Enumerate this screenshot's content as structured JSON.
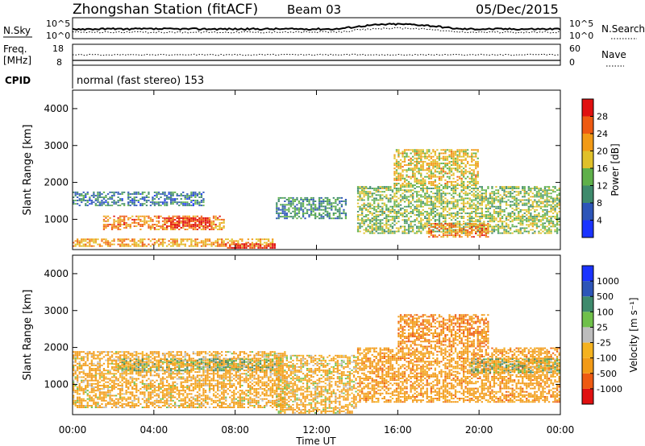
{
  "header": {
    "station": "Zhongshan Station (fitACF)",
    "beam": "Beam 03",
    "date": "05/Dec/2015"
  },
  "panels": {
    "nsky": {
      "left_label": "N.Sky",
      "left_ticks": [
        "10^5",
        "10^0"
      ],
      "right_ticks": [
        "10^5",
        "10^0"
      ],
      "right_label": "N.Search"
    },
    "freq": {
      "left_label_top": "Freq.",
      "left_label_unit": "[MHz]",
      "left_ticks": [
        "18",
        "8"
      ],
      "right_ticks": [
        "60",
        "0"
      ],
      "right_label": "Nave"
    },
    "cpid": {
      "label": "CPID",
      "text": "normal (fast stereo)  153"
    }
  },
  "axes": {
    "ylabel": "Slant Range [km]",
    "xlabel": "Time UT",
    "y_ticks": [
      "4000",
      "3000",
      "2000",
      "1000"
    ],
    "x_ticks": [
      "00:00",
      "04:00",
      "08:00",
      "12:00",
      "16:00",
      "20:00",
      "00:00"
    ]
  },
  "colorbars": {
    "power": {
      "label": "Power [dB]",
      "ticks": [
        "28",
        "24",
        "20",
        "16",
        "12",
        "8",
        "4"
      ]
    },
    "velocity": {
      "label": "Velocity [m s⁻¹]",
      "ticks": [
        "1000",
        "500",
        "100",
        "25",
        "-25",
        "-100",
        "-500",
        "-1000"
      ]
    }
  },
  "colors": {
    "power_scale": [
      "#1a33ff",
      "#2d55b8",
      "#3e8a6c",
      "#5fb04a",
      "#e0c02a",
      "#f29a16",
      "#ee5a12",
      "#e01010"
    ],
    "velocity_scale": [
      "#e01010",
      "#ee5a12",
      "#f29a16",
      "#f5b21f",
      "#bdbdbd",
      "#6fc04a",
      "#3e8a6c",
      "#2d55b8",
      "#1a33ff"
    ]
  },
  "chart_data": [
    {
      "type": "heatmap",
      "title": "Power",
      "xlabel": "Time UT",
      "ylabel": "Slant Range [km]",
      "xlim": [
        "00:00",
        "24:00"
      ],
      "ylim": [
        180,
        4500
      ],
      "value_label": "Power [dB]",
      "value_range": [
        0,
        30
      ],
      "regions": [
        {
          "t0": 0.0,
          "t1": 6.5,
          "r0": 1350,
          "r1": 1750,
          "value": 8
        },
        {
          "t0": 1.5,
          "t1": 7.5,
          "r0": 700,
          "r1": 1100,
          "value": 22
        },
        {
          "t0": 4.5,
          "t1": 6.8,
          "r0": 750,
          "r1": 1050,
          "value": 28
        },
        {
          "t0": 0.0,
          "t1": 10.0,
          "r0": 250,
          "r1": 480,
          "value": 20
        },
        {
          "t0": 7.5,
          "t1": 10.0,
          "r0": 200,
          "r1": 350,
          "value": 28
        },
        {
          "t0": 10.0,
          "t1": 13.5,
          "r0": 1000,
          "r1": 1600,
          "value": 10
        },
        {
          "t0": 14.0,
          "t1": 24.0,
          "r0": 600,
          "r1": 1900,
          "value": 14
        },
        {
          "t0": 15.8,
          "t1": 20.0,
          "r0": 1900,
          "r1": 2900,
          "value": 18
        },
        {
          "t0": 17.5,
          "t1": 20.5,
          "r0": 500,
          "r1": 900,
          "value": 22
        }
      ]
    },
    {
      "type": "heatmap",
      "title": "Velocity",
      "xlabel": "Time UT",
      "ylabel": "Slant Range [km]",
      "xlim": [
        "00:00",
        "24:00"
      ],
      "ylim": [
        180,
        4500
      ],
      "value_label": "Velocity [m s⁻¹]",
      "value_range": [
        -1000,
        1000
      ],
      "regions": [
        {
          "t0": 0.0,
          "t1": 10.5,
          "r0": 350,
          "r1": 1900,
          "value": -200
        },
        {
          "t0": 2.0,
          "t1": 10.0,
          "r0": 1350,
          "r1": 1700,
          "value": 0
        },
        {
          "t0": 10.0,
          "t1": 14.0,
          "r0": 200,
          "r1": 1800,
          "value": -150
        },
        {
          "t0": 14.0,
          "t1": 24.0,
          "r0": 500,
          "r1": 2000,
          "value": -300
        },
        {
          "t0": 16.0,
          "t1": 20.5,
          "r0": 2000,
          "r1": 2900,
          "value": -400
        },
        {
          "t0": 19.5,
          "t1": 24.0,
          "r0": 1300,
          "r1": 1700,
          "value": 0
        }
      ]
    }
  ]
}
